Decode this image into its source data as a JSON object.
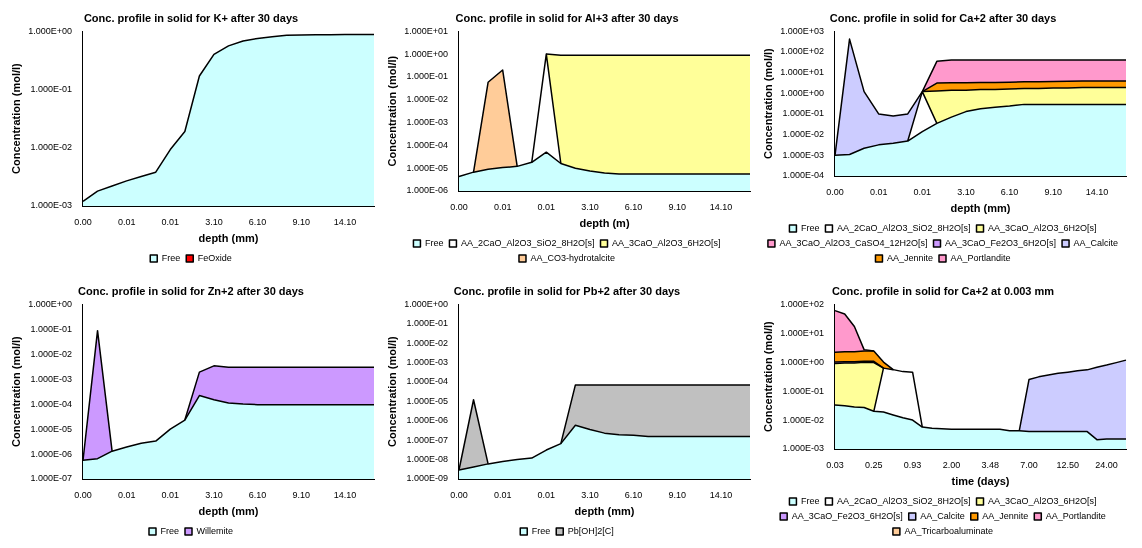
{
  "chart_data": [
    {
      "type": "area",
      "title": "Conc. profile in solid for K+ after 30 days",
      "xlabel": "depth (mm)",
      "ylabel": "Concentration (mol/l)",
      "log": true,
      "legend": "bottom",
      "categories": [
        "0.00",
        null,
        null,
        "0.01",
        null,
        null,
        "0.01",
        null,
        null,
        "3.10",
        null,
        null,
        "6.10",
        null,
        null,
        "9.10",
        null,
        null,
        "14.10",
        null,
        null
      ],
      "ylim": [
        0.001,
        1
      ],
      "yticks": [
        {
          "value": 0.001,
          "label": "1.000E-03"
        },
        {
          "value": 0.01,
          "label": "1.000E-02"
        },
        {
          "value": 0.1,
          "label": "1.000E-01"
        },
        {
          "value": 1,
          "label": "1.000E+00"
        }
      ],
      "series": [
        {
          "name": "Free",
          "color": "#ccffff",
          "values": [
            0.0012,
            0.0018,
            0.0022,
            0.0027,
            0.0032,
            0.0038,
            0.0093,
            0.019,
            0.17,
            0.4,
            0.56,
            0.68,
            0.75,
            0.8,
            0.85,
            0.86,
            0.87,
            0.87,
            0.88,
            0.88,
            0.88
          ]
        },
        {
          "name": "FeOxide",
          "color": "#ff0000",
          "values": [
            null,
            null,
            null,
            null,
            null,
            null,
            null,
            null,
            null,
            null,
            null,
            null,
            null,
            null,
            null,
            null,
            null,
            null,
            null,
            null,
            null
          ]
        }
      ]
    },
    {
      "type": "area",
      "title": "Conc. profile in solid for Al+3 after 30 days",
      "xlabel": "depth (m)",
      "ylabel": "Concentration (mol/l)",
      "log": true,
      "legend": "bottom",
      "categories": [
        "0.00",
        null,
        null,
        "0.01",
        null,
        null,
        "0.01",
        null,
        null,
        "3.10",
        null,
        null,
        "6.10",
        null,
        null,
        "9.10",
        null,
        null,
        "14.10",
        null,
        null
      ],
      "ylim": [
        1e-06,
        10
      ],
      "yticks": [
        {
          "value": 1e-06,
          "label": "1.000E-06"
        },
        {
          "value": 1e-05,
          "label": "1.000E-05"
        },
        {
          "value": 0.0001,
          "label": "1.000E-04"
        },
        {
          "value": 0.001,
          "label": "1.000E-03"
        },
        {
          "value": 0.01,
          "label": "1.000E-02"
        },
        {
          "value": 0.1,
          "label": "1.000E-01"
        },
        {
          "value": 1,
          "label": "1.000E+00"
        },
        {
          "value": 10,
          "label": "1.000E+01"
        }
      ],
      "series": [
        {
          "name": "Free",
          "color": "#ccffff",
          "values": [
            4.3e-06,
            6.7e-06,
            9e-06,
            1.06e-05,
            1.2e-05,
            1.8e-05,
            5e-05,
            1.6e-05,
            1e-05,
            7.5e-06,
            6.2e-06,
            5.5e-06,
            5.5e-06,
            5.5e-06,
            5.5e-06,
            5.5e-06,
            5.5e-06,
            5.5e-06,
            5.5e-06,
            5.5e-06,
            5.5e-06
          ]
        },
        {
          "name": "AA_2CaO_Al2O3_SiO2_8H2O[s]",
          "color": "#ffffff",
          "values": [
            null,
            null,
            null,
            null,
            null,
            1.8e-05,
            1.0,
            1.6e-05,
            null,
            null,
            null,
            null,
            null,
            null,
            null,
            null,
            null,
            null,
            null,
            null,
            null
          ]
        },
        {
          "name": "AA_3CaO_Al2O3_6H2O[s]",
          "color": "#ffff99",
          "values": [
            null,
            null,
            null,
            null,
            null,
            null,
            1.0,
            0.89,
            0.89,
            0.89,
            0.89,
            0.89,
            0.89,
            0.89,
            0.89,
            0.89,
            0.89,
            0.89,
            0.89,
            0.89,
            0.89
          ]
        },
        {
          "name": "AA_CO3-hydrotalcite",
          "color": "#ffcc99",
          "values": [
            null,
            6.7e-06,
            0.058,
            0.2,
            1.2e-05,
            null,
            null,
            null,
            null,
            null,
            null,
            null,
            null,
            null,
            null,
            null,
            null,
            null,
            null,
            null,
            null
          ]
        }
      ]
    },
    {
      "type": "area",
      "title": "Conc. profile in solid for Ca+2 after 30 days",
      "xlabel": "depth (mm)",
      "ylabel": "Concentration (mol/l)",
      "log": true,
      "legend": "bottom",
      "categories": [
        "0.00",
        null,
        null,
        "0.01",
        null,
        null,
        "0.01",
        null,
        null,
        "3.10",
        null,
        null,
        "6.10",
        null,
        null,
        "9.10",
        null,
        null,
        "14.10",
        null,
        null
      ],
      "ylim": [
        0.0001,
        1000
      ],
      "yticks": [
        {
          "value": 0.0001,
          "label": "1.000E-04"
        },
        {
          "value": 0.001,
          "label": "1.000E-03"
        },
        {
          "value": 0.01,
          "label": "1.000E-02"
        },
        {
          "value": 0.1,
          "label": "1.000E-01"
        },
        {
          "value": 1,
          "label": "1.000E+00"
        },
        {
          "value": 10,
          "label": "1.000E+01"
        },
        {
          "value": 100,
          "label": "1.000E+02"
        },
        {
          "value": 1000,
          "label": "1.000E+03"
        }
      ],
      "series": [
        {
          "name": "Free",
          "color": "#ccffff",
          "values": [
            0.001,
            0.0011,
            0.0022,
            0.0032,
            0.0038,
            0.0049,
            0.014,
            0.035,
            0.07,
            0.13,
            0.18,
            0.21,
            0.24,
            0.29,
            0.29,
            0.29,
            0.29,
            0.29,
            0.29,
            0.29,
            0.29
          ]
        },
        {
          "name": "AA_2CaO_Al2O3_SiO2_8H2O[s]",
          "color": "#ffffff",
          "values": [
            null,
            null,
            null,
            null,
            null,
            0.0049,
            1.2,
            0.035,
            null,
            null,
            null,
            null,
            null,
            null,
            null,
            null,
            null,
            null,
            null,
            null,
            null
          ]
        },
        {
          "name": "AA_3CaO_Al2O3_6H2O[s]",
          "color": "#ffff99",
          "values": [
            null,
            null,
            null,
            null,
            null,
            null,
            1.2,
            1.3,
            1.4,
            1.4,
            1.5,
            1.5,
            1.6,
            1.7,
            1.7,
            1.8,
            1.8,
            1.9,
            1.9,
            1.9,
            1.9
          ]
        },
        {
          "name": "AA_3CaO_Al2O3_CaSO4_12H2O[s]",
          "color": "#ff99cc",
          "values": [
            null,
            null,
            null,
            null,
            null,
            null,
            null,
            null,
            null,
            null,
            null,
            null,
            null,
            null,
            null,
            null,
            null,
            null,
            null,
            null,
            null
          ]
        },
        {
          "name": "AA_3CaO_Fe2O3_6H2O[s]",
          "color": "#cc99ff",
          "values": [
            null,
            null,
            null,
            null,
            null,
            null,
            null,
            null,
            null,
            null,
            null,
            null,
            null,
            null,
            null,
            null,
            null,
            null,
            null,
            null,
            null
          ]
        },
        {
          "name": "AA_Calcite",
          "color": "#ccccff",
          "values": [
            0.001,
            415,
            1.2,
            0.1,
            0.08,
            0.1,
            1.2,
            null,
            null,
            null,
            null,
            null,
            null,
            null,
            null,
            null,
            null,
            null,
            null,
            null,
            null
          ]
        },
        {
          "name": "AA_Jennite",
          "color": "#ff9900",
          "values": [
            null,
            null,
            null,
            null,
            null,
            null,
            1.2,
            3.1,
            3.2,
            3.2,
            3.3,
            3.3,
            3.4,
            3.6,
            3.6,
            3.7,
            3.8,
            3.9,
            3.9,
            3.9,
            3.9
          ]
        },
        {
          "name": "AA_Portlandite",
          "color": "#ff99cc",
          "values": [
            null,
            null,
            null,
            null,
            null,
            null,
            1.2,
            35,
            40,
            40,
            40,
            40,
            40,
            40,
            40,
            40,
            40,
            40,
            40,
            40,
            40
          ]
        }
      ]
    },
    {
      "type": "area",
      "title": "Conc. profile in solid for Zn+2 after 30 days",
      "xlabel": "depth (mm)",
      "ylabel": "Concentration (mol/l)",
      "log": true,
      "legend": "bottom",
      "categories": [
        "0.00",
        null,
        null,
        "0.01",
        null,
        null,
        "0.01",
        null,
        null,
        "3.10",
        null,
        null,
        "6.10",
        null,
        null,
        "9.10",
        null,
        null,
        "14.10",
        null,
        null
      ],
      "ylim": [
        1e-07,
        1
      ],
      "yticks": [
        {
          "value": 1e-07,
          "label": "1.000E-07"
        },
        {
          "value": 1e-06,
          "label": "1.000E-06"
        },
        {
          "value": 1e-05,
          "label": "1.000E-05"
        },
        {
          "value": 0.0001,
          "label": "1.000E-04"
        },
        {
          "value": 0.001,
          "label": "1.000E-03"
        },
        {
          "value": 0.01,
          "label": "1.000E-02"
        },
        {
          "value": 0.1,
          "label": "1.000E-01"
        },
        {
          "value": 1,
          "label": "1.000E+00"
        }
      ],
      "series": [
        {
          "name": "Free",
          "color": "#ccffff",
          "values": [
            5.6e-07,
            6.5e-07,
            1.3e-06,
            1.9e-06,
            2.7e-06,
            3.3e-06,
            1e-05,
            2.3e-05,
            0.00022,
            0.00015,
            0.00011,
            0.0001,
            9.5e-05,
            9.5e-05,
            9.5e-05,
            9.5e-05,
            9.5e-05,
            9.5e-05,
            9.5e-05,
            9.5e-05,
            9.5e-05
          ]
        },
        {
          "name": "Willemite",
          "color": "#cc99ff",
          "values": [
            5.6e-07,
            0.087,
            1.3e-06,
            null,
            null,
            null,
            null,
            2.3e-05,
            0.0019,
            0.0034,
            0.003,
            0.003,
            0.003,
            0.003,
            0.003,
            0.003,
            0.003,
            0.003,
            0.003,
            0.003,
            0.003
          ]
        }
      ]
    },
    {
      "type": "area",
      "title": "Conc. profile in solid for Pb+2 after 30 days",
      "xlabel": "depth (mm)",
      "ylabel": "Concentration (mol/l)",
      "log": true,
      "legend": "bottom",
      "categories": [
        "0.00",
        null,
        null,
        "0.01",
        null,
        null,
        "0.01",
        null,
        null,
        "3.10",
        null,
        null,
        "6.10",
        null,
        null,
        "9.10",
        null,
        null,
        "14.10",
        null,
        null
      ],
      "ylim": [
        1e-09,
        1
      ],
      "yticks": [
        {
          "value": 1e-09,
          "label": "1.000E-09"
        },
        {
          "value": 1e-08,
          "label": "1.000E-08"
        },
        {
          "value": 1e-07,
          "label": "1.000E-07"
        },
        {
          "value": 1e-06,
          "label": "1.000E-06"
        },
        {
          "value": 1e-05,
          "label": "1.000E-05"
        },
        {
          "value": 0.0001,
          "label": "1.000E-04"
        },
        {
          "value": 0.001,
          "label": "1.000E-03"
        },
        {
          "value": 0.01,
          "label": "1.000E-02"
        },
        {
          "value": 0.1,
          "label": "1.000E-01"
        },
        {
          "value": 1,
          "label": "1.000E+00"
        }
      ],
      "series": [
        {
          "name": "Free",
          "color": "#ccffff",
          "values": [
            2.9e-09,
            4.2e-09,
            6e-09,
            8e-09,
            1e-08,
            1.2e-08,
            3.1e-08,
            6.6e-08,
            5.9e-07,
            3.5e-07,
            2.3e-07,
            1.9e-07,
            1.8e-07,
            1.55e-07,
            1.55e-07,
            1.55e-07,
            1.55e-07,
            1.55e-07,
            1.55e-07,
            1.55e-07,
            1.55e-07
          ]
        },
        {
          "name": "Pb[OH]2[C]",
          "color": "#c0c0c0",
          "values": [
            2.9e-09,
            1.2e-05,
            6e-09,
            null,
            null,
            null,
            null,
            6.6e-08,
            7e-05,
            7e-05,
            7e-05,
            7e-05,
            7e-05,
            7e-05,
            7e-05,
            7e-05,
            7e-05,
            7e-05,
            7e-05,
            7e-05,
            7e-05
          ]
        }
      ]
    },
    {
      "type": "area",
      "title": "Conc. profile in solid for Ca+2 at 0.003 mm",
      "xlabel": "time (days)",
      "ylabel": "Concentration (mol/l)",
      "log": true,
      "legend": "bottom",
      "categories": [
        "0.03",
        null,
        null,
        null,
        "0.25",
        null,
        null,
        null,
        "0.93",
        null,
        null,
        null,
        "2.00",
        null,
        null,
        null,
        "3.48",
        null,
        null,
        null,
        "7.00",
        null,
        null,
        null,
        "12.50",
        null,
        null,
        null,
        "24.00",
        null,
        null
      ],
      "ylim": [
        0.001,
        100
      ],
      "yticks": [
        {
          "value": 0.001,
          "label": "1.000E-03"
        },
        {
          "value": 0.01,
          "label": "1.000E-02"
        },
        {
          "value": 0.1,
          "label": "1.000E-01"
        },
        {
          "value": 1,
          "label": "1.000E+00"
        },
        {
          "value": 10,
          "label": "1.000E+01"
        },
        {
          "value": 100,
          "label": "1.000E+02"
        }
      ],
      "series": [
        {
          "name": "Free",
          "color": "#ccffff",
          "values": [
            0.033,
            0.031,
            0.028,
            0.027,
            0.02,
            0.019,
            0.015,
            0.012,
            0.01,
            0.0057,
            0.0052,
            0.005,
            0.0048,
            0.0048,
            0.0048,
            0.0048,
            0.0048,
            0.0048,
            0.0043,
            0.0043,
            0.004,
            0.004,
            0.004,
            0.004,
            0.004,
            0.004,
            0.004,
            0.0021,
            0.0022,
            0.0022,
            0.0022
          ]
        },
        {
          "name": "AA_2CaO_Al2O3_SiO2_8H2O[s]",
          "color": "#ffffff",
          "values": [
            null,
            null,
            null,
            null,
            0.02,
            0.62,
            0.55,
            0.47,
            0.45,
            0.0057,
            null,
            null,
            null,
            null,
            null,
            null,
            null,
            null,
            null,
            null,
            null,
            null,
            null,
            null,
            null,
            null,
            null,
            null,
            null,
            null,
            null
          ]
        },
        {
          "name": "AA_3CaO_Al2O3_6H2O[s]",
          "color": "#ffff99",
          "values": [
            0.9,
            0.93,
            0.93,
            0.98,
            0.97,
            0.62,
            null,
            null,
            null,
            null,
            null,
            null,
            null,
            null,
            null,
            null,
            null,
            null,
            null,
            null,
            null,
            null,
            null,
            null,
            null,
            null,
            null,
            null,
            null,
            null,
            null
          ]
        },
        {
          "name": "AA_3CaO_Fe2O3_6H2O[s]",
          "color": "#cc99ff",
          "values": [
            1.0,
            1.03,
            1.03,
            1.08,
            1.07,
            0.62,
            null,
            null,
            null,
            null,
            null,
            null,
            null,
            null,
            null,
            null,
            null,
            null,
            null,
            null,
            null,
            null,
            null,
            null,
            null,
            null,
            null,
            null,
            null,
            null,
            null
          ]
        },
        {
          "name": "AA_Calcite",
          "color": "#ccccff",
          "values": [
            null,
            null,
            null,
            null,
            null,
            null,
            null,
            null,
            null,
            null,
            null,
            null,
            null,
            null,
            null,
            null,
            null,
            null,
            null,
            0.0043,
            0.25,
            0.31,
            0.36,
            0.41,
            0.45,
            0.5,
            0.54,
            0.67,
            0.79,
            0.96,
            1.17
          ]
        },
        {
          "name": "AA_Jennite",
          "color": "#ff9900",
          "values": [
            2.2,
            2.3,
            2.3,
            2.4,
            2.4,
            1.0,
            0.55,
            null,
            null,
            null,
            null,
            null,
            null,
            null,
            null,
            null,
            null,
            null,
            null,
            null,
            null,
            null,
            null,
            null,
            null,
            null,
            null,
            null,
            null,
            null,
            null
          ]
        },
        {
          "name": "AA_Portlandite",
          "color": "#ff99cc",
          "values": [
            60,
            46,
            17,
            2.7,
            2.4,
            null,
            null,
            null,
            null,
            null,
            null,
            null,
            null,
            null,
            null,
            null,
            null,
            null,
            null,
            null,
            null,
            null,
            null,
            null,
            null,
            null,
            null,
            null,
            null,
            null,
            null
          ]
        },
        {
          "name": "AA_Tricarboaluminate",
          "color": "#ffcc99",
          "values": [
            null,
            null,
            null,
            null,
            null,
            null,
            null,
            null,
            null,
            null,
            null,
            null,
            null,
            null,
            null,
            null,
            null,
            null,
            null,
            null,
            null,
            null,
            null,
            null,
            null,
            null,
            null,
            null,
            null,
            null,
            null
          ]
        }
      ]
    }
  ]
}
